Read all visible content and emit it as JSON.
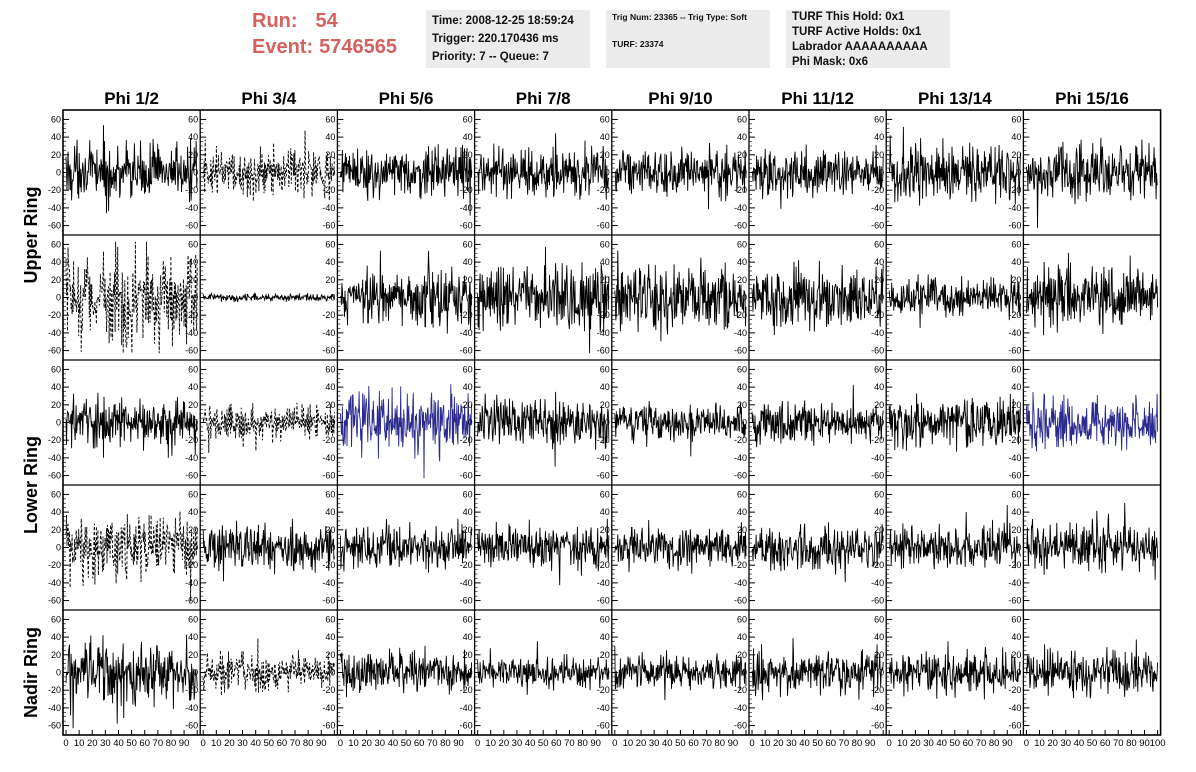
{
  "header": {
    "run_label": "Run:",
    "run_value": "54",
    "event_label": "Event:",
    "event_value": "5746565"
  },
  "info": {
    "time": "Time: 2008-12-25 18:59:24",
    "trigger": "Trigger: 220.170436 ms",
    "priority": "Priority: 7 -- Queue: 7",
    "trig_num": "Trig Num: 23365 -- Trig Type: Soft",
    "turf": "TURF: 23374",
    "turf_hold": "TURF This Hold: 0x1",
    "turf_active": "TURF Active Holds: 0x1",
    "labrador": "Labrador AAAAAAAAAA",
    "phi_mask": "Phi Mask: 0x6"
  },
  "chart_data": {
    "type": "line",
    "title": "",
    "columns": [
      "Phi 1/2",
      "Phi 3/4",
      "Phi 5/6",
      "Phi 7/8",
      "Phi 9/10",
      "Phi 11/12",
      "Phi 13/14",
      "Phi 15/16"
    ],
    "ring_labels": [
      "Upper Ring",
      "Lower Ring",
      "Nadir Ring"
    ],
    "rows": 5,
    "ylim": [
      -65,
      65
    ],
    "y_ticks": [
      -60,
      -40,
      -20,
      0,
      20,
      40,
      60
    ],
    "xlim": [
      0,
      100
    ],
    "x_ticks": [
      0,
      10,
      20,
      30,
      40,
      50,
      60,
      70,
      80,
      90,
      100
    ],
    "x_tick_labels": [
      "0",
      "10",
      "20",
      "30",
      "40",
      "50",
      "60",
      "70",
      "80",
      "90",
      "100"
    ],
    "samples_per_trace": 260,
    "colors": {
      "normal": "#000000",
      "highlight": "#2b2b8f"
    },
    "traces": [
      [
        {
          "amp": 14,
          "style": "solid"
        },
        {
          "amp": 12,
          "style": "dashed"
        },
        {
          "amp": 13,
          "style": "solid"
        },
        {
          "amp": 13,
          "style": "solid"
        },
        {
          "amp": 13,
          "style": "solid"
        },
        {
          "amp": 12,
          "style": "solid"
        },
        {
          "amp": 15,
          "style": "solid"
        },
        {
          "amp": 14,
          "style": "solid"
        }
      ],
      [
        {
          "amp": 25,
          "style": "dashed"
        },
        {
          "amp": 2,
          "style": "solid"
        },
        {
          "amp": 15,
          "style": "solid"
        },
        {
          "amp": 17,
          "style": "solid"
        },
        {
          "amp": 17,
          "style": "solid"
        },
        {
          "amp": 16,
          "style": "solid"
        },
        {
          "amp": 10,
          "style": "solid"
        },
        {
          "amp": 17,
          "style": "solid"
        }
      ],
      [
        {
          "amp": 13,
          "style": "solid"
        },
        {
          "amp": 9,
          "style": "dashed"
        },
        {
          "amp": 16,
          "style": "highlight"
        },
        {
          "amp": 13,
          "style": "solid"
        },
        {
          "amp": 10,
          "style": "solid"
        },
        {
          "amp": 11,
          "style": "solid"
        },
        {
          "amp": 14,
          "style": "solid"
        },
        {
          "amp": 13,
          "style": "highlight"
        }
      ],
      [
        {
          "amp": 18,
          "style": "dashed"
        },
        {
          "amp": 12,
          "style": "solid"
        },
        {
          "amp": 12,
          "style": "solid"
        },
        {
          "amp": 12,
          "style": "solid"
        },
        {
          "amp": 11,
          "style": "solid"
        },
        {
          "amp": 12,
          "style": "solid"
        },
        {
          "amp": 11,
          "style": "solid"
        },
        {
          "amp": 13,
          "style": "solid"
        }
      ],
      [
        {
          "amp": 17,
          "style": "solid"
        },
        {
          "amp": 10,
          "style": "dashed"
        },
        {
          "amp": 11,
          "style": "solid"
        },
        {
          "amp": 8,
          "style": "solid"
        },
        {
          "amp": 9,
          "style": "solid"
        },
        {
          "amp": 12,
          "style": "solid"
        },
        {
          "amp": 11,
          "style": "solid"
        },
        {
          "amp": 12,
          "style": "solid"
        }
      ]
    ]
  }
}
